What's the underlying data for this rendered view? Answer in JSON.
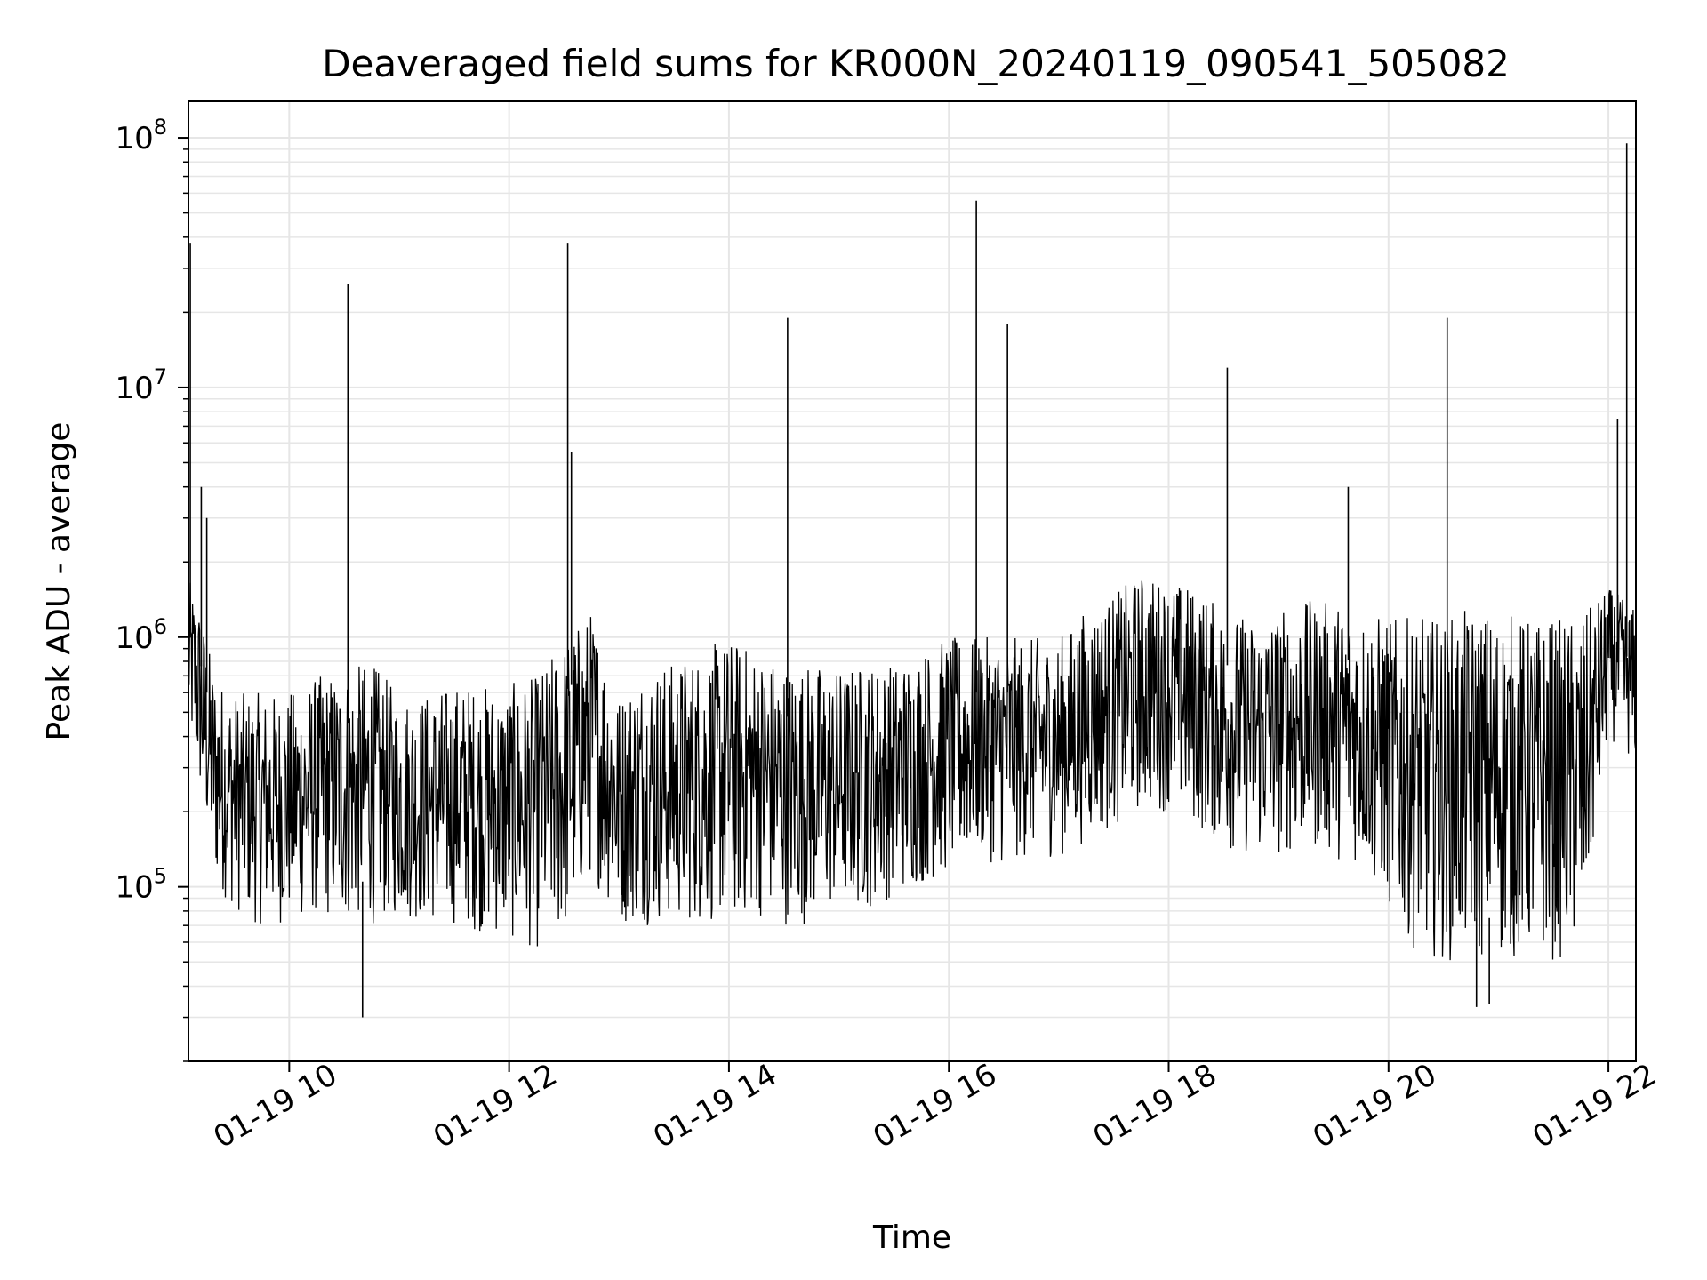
{
  "chart_data": {
    "type": "line",
    "title": "Deaveraged field sums for KR000N_20240119_090541_505082",
    "xlabel": "Time",
    "ylabel": "Peak ADU - average",
    "y_scale": "log",
    "ylim": [
      20000,
      140000000
    ],
    "xlim": [
      "01-19 09:05",
      "01-19 22:15"
    ],
    "grid": true,
    "line_color": "#000000",
    "grid_color": "#e6e6e6",
    "x_ticks": [
      {
        "label": "01-19 10",
        "time": "01-19 10:00"
      },
      {
        "label": "01-19 12",
        "time": "01-19 12:00"
      },
      {
        "label": "01-19 14",
        "time": "01-19 14:00"
      },
      {
        "label": "01-19 16",
        "time": "01-19 16:00"
      },
      {
        "label": "01-19 18",
        "time": "01-19 18:00"
      },
      {
        "label": "01-19 20",
        "time": "01-19 20:00"
      },
      {
        "label": "01-19 22",
        "time": "01-19 22:00"
      }
    ],
    "y_ticks": [
      {
        "value": 100000,
        "base": "10",
        "exp": "5"
      },
      {
        "value": 1000000,
        "base": "10",
        "exp": "6"
      },
      {
        "value": 10000000,
        "base": "10",
        "exp": "7"
      },
      {
        "value": 100000000,
        "base": "10",
        "exp": "8"
      }
    ],
    "series": [
      {
        "x": [
          "01-19 09:05",
          "01-19 09:10",
          "01-19 09:15",
          "01-19 09:20",
          "01-19 09:30",
          "01-19 09:40",
          "01-19 09:50",
          "01-19 10:00",
          "01-19 10:15",
          "01-19 10:30",
          "01-19 10:45",
          "01-19 11:00",
          "01-19 11:15",
          "01-19 11:30",
          "01-19 11:45",
          "01-19 12:00",
          "01-19 12:15",
          "01-19 12:30",
          "01-19 12:45",
          "01-19 13:00",
          "01-19 13:15",
          "01-19 13:30",
          "01-19 13:45",
          "01-19 14:00",
          "01-19 14:15",
          "01-19 14:30",
          "01-19 14:45",
          "01-19 15:00",
          "01-19 15:15",
          "01-19 15:30",
          "01-19 15:45",
          "01-19 16:00",
          "01-19 16:15",
          "01-19 16:30",
          "01-19 16:45",
          "01-19 17:00",
          "01-19 17:15",
          "01-19 17:30",
          "01-19 17:45",
          "01-19 18:00",
          "01-19 18:15",
          "01-19 18:30",
          "01-19 18:45",
          "01-19 19:00",
          "01-19 19:15",
          "01-19 19:30",
          "01-19 19:45",
          "01-19 20:00",
          "01-19 20:15",
          "01-19 20:30",
          "01-19 20:45",
          "01-19 21:00",
          "01-19 21:15",
          "01-19 21:30",
          "01-19 21:45",
          "01-19 22:00",
          "01-19 22:15"
        ],
        "y_low": [
          400000,
          250000,
          150000,
          100000,
          80000,
          70000,
          70000,
          70000,
          75000,
          70000,
          70000,
          75000,
          70000,
          70000,
          65000,
          60000,
          55000,
          60000,
          110000,
          70000,
          70000,
          70000,
          70000,
          70000,
          75000,
          70000,
          70000,
          80000,
          80000,
          90000,
          100000,
          110000,
          130000,
          120000,
          130000,
          130000,
          150000,
          170000,
          200000,
          200000,
          170000,
          140000,
          130000,
          130000,
          140000,
          130000,
          120000,
          80000,
          55000,
          50000,
          50000,
          50000,
          50000,
          50000,
          50000,
          400000,
          300000
        ],
        "y_high": [
          1700000,
          1500000,
          1000000,
          700000,
          600000,
          600000,
          600000,
          600000,
          700000,
          750000,
          800000,
          600000,
          600000,
          650000,
          650000,
          650000,
          700000,
          1000000,
          1300000,
          600000,
          800000,
          800000,
          900000,
          1000000,
          900000,
          800000,
          800000,
          750000,
          800000,
          800000,
          900000,
          1000000,
          1000000,
          1000000,
          1000000,
          1000000,
          1300000,
          1500000,
          1800000,
          1700000,
          1600000,
          1300000,
          1200000,
          1300000,
          1400000,
          1400000,
          1300000,
          1200000,
          1200000,
          1200000,
          1300000,
          1300000,
          1200000,
          1200000,
          1200000,
          1600000,
          1300000
        ]
      }
    ],
    "spikes": [
      {
        "time": "01-19 09:06",
        "value": 38000000
      },
      {
        "time": "01-19 09:12",
        "value": 4000000
      },
      {
        "time": "01-19 09:15",
        "value": 3000000
      },
      {
        "time": "01-19 10:32",
        "value": 26000000
      },
      {
        "time": "01-19 12:32",
        "value": 38000000
      },
      {
        "time": "01-19 12:34",
        "value": 5500000
      },
      {
        "time": "01-19 14:32",
        "value": 19000000
      },
      {
        "time": "01-19 16:15",
        "value": 56000000
      },
      {
        "time": "01-19 16:32",
        "value": 18000000
      },
      {
        "time": "01-19 18:32",
        "value": 12000000
      },
      {
        "time": "01-19 19:38",
        "value": 4000000
      },
      {
        "time": "01-19 20:32",
        "value": 19000000
      },
      {
        "time": "01-19 22:05",
        "value": 7500000
      },
      {
        "time": "01-19 22:10",
        "value": 95000000
      }
    ],
    "dips": [
      {
        "time": "01-19 10:40",
        "value": 30000
      },
      {
        "time": "01-19 20:48",
        "value": 33000
      },
      {
        "time": "01-19 20:55",
        "value": 34000
      }
    ]
  }
}
